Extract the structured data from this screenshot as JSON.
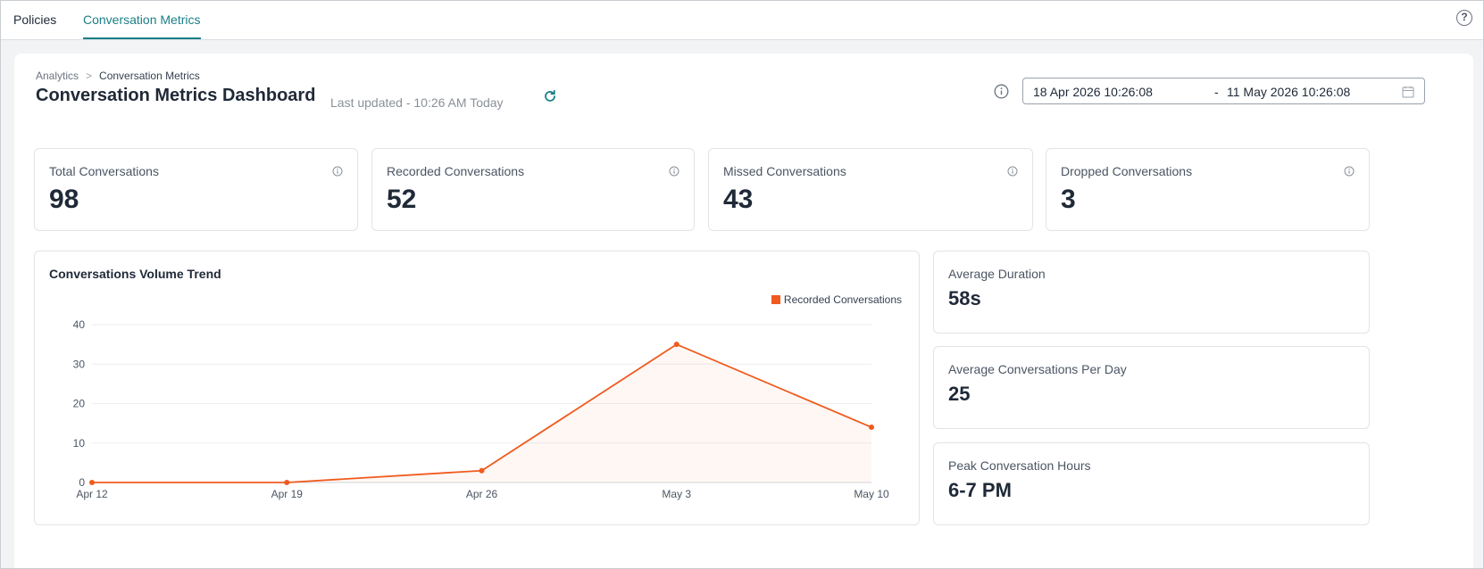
{
  "tabs": [
    {
      "label": "Policies",
      "active": false
    },
    {
      "label": "Conversation Metrics",
      "active": true
    }
  ],
  "breadcrumb": {
    "parent": "Analytics",
    "separator": ">",
    "current": "Conversation Metrics"
  },
  "header": {
    "title": "Conversation Metrics Dashboard",
    "last_updated": "Last updated - 10:26 AM Today"
  },
  "date_range": {
    "start": "18 Apr 2026 10:26:08",
    "separator": "-",
    "end": "11 May 2026 10:26:08"
  },
  "kpis": [
    {
      "label": "Total Conversations",
      "value": "98"
    },
    {
      "label": "Recorded Conversations",
      "value": "52"
    },
    {
      "label": "Missed Conversations",
      "value": "43"
    },
    {
      "label": "Dropped Conversations",
      "value": "3"
    }
  ],
  "chart_card": {
    "title": "Conversations Volume Trend"
  },
  "chart_data": {
    "type": "area",
    "title": "Conversations Volume Trend",
    "categories": [
      "Apr 12",
      "Apr 19",
      "Apr 26",
      "May 3",
      "May 10"
    ],
    "series": [
      {
        "name": "Recorded Conversations",
        "values": [
          0,
          0,
          3,
          35,
          14
        ]
      }
    ],
    "yticks": [
      0,
      10,
      20,
      30,
      40
    ],
    "ylim": [
      0,
      40
    ],
    "grid": true,
    "legend_position": "top-right",
    "color": "#f05a1e"
  },
  "stats": [
    {
      "label": "Average Duration",
      "value": "58s"
    },
    {
      "label": "Average Conversations Per Day",
      "value": "25"
    },
    {
      "label": "Peak Conversation Hours",
      "value": "6-7 PM"
    }
  ],
  "colors": {
    "accent": "#1a7f86",
    "series": "#f05a1e"
  }
}
